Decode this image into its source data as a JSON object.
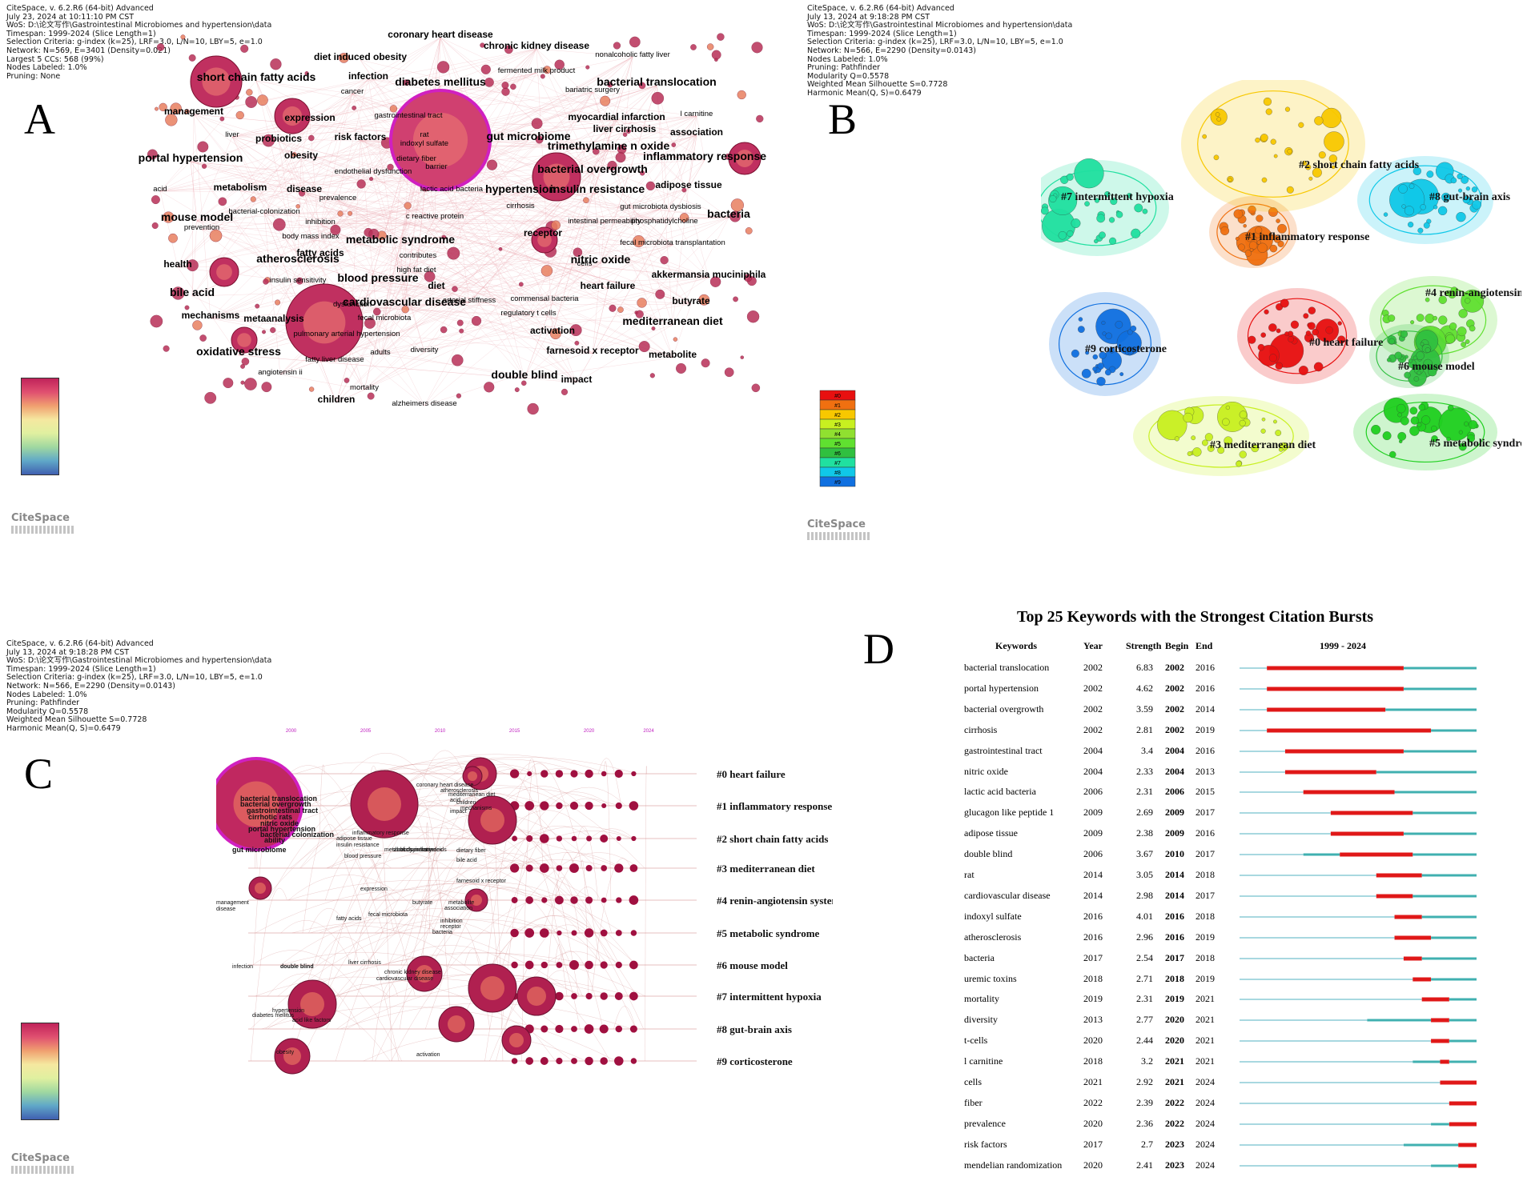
{
  "panels": {
    "A": "A",
    "B": "B",
    "C": "C",
    "D": "D"
  },
  "logo": "CiteSpace",
  "meta_A": [
    "CiteSpace, v. 6.2.R6 (64-bit) Advanced",
    "July 23, 2024 at 10:11:10 PM CST",
    "WoS: D:\\论文写作\\Gastrointestinal Microbiomes and hypertension\\data",
    "Timespan: 1999-2024 (Slice Length=1)",
    "Selection Criteria: g-index (k=25), LRF=3.0, L/N=10, LBY=5, e=1.0",
    "Network: N=569, E=3401 (Density=0.021)",
    "Largest 5 CCs: 568 (99%)",
    "Nodes Labeled: 1.0%",
    "Pruning: None"
  ],
  "meta_B": [
    "CiteSpace, v. 6.2.R6 (64-bit) Advanced",
    "July 13, 2024 at 9:18:28 PM CST",
    "WoS: D:\\论文写作\\Gastrointestinal Microbiomes and hypertension\\data",
    "Timespan: 1999-2024 (Slice Length=1)",
    "Selection Criteria: g-index (k=25), LRF=3.0, L/N=10, LBY=5, e=1.0",
    "Network: N=566, E=2290 (Density=0.0143)",
    "Nodes Labeled: 1.0%",
    "Pruning: Pathfinder",
    "Modularity Q=0.5578",
    "Weighted Mean Silhouette S=0.7728",
    "Harmonic Mean(Q, S)=0.6479"
  ],
  "meta_C": [
    "CiteSpace, v. 6.2.R6 (64-bit) Advanced",
    "July 13, 2024 at 9:18:28 PM CST",
    "WoS: D:\\论文写作\\Gastrointestinal Microbiomes and hypertension\\data",
    "Timespan: 1999-2024 (Slice Length=1)",
    "Selection Criteria: g-index (k=25), LRF=3.0, L/N=10, LBY=5, e=1.0",
    "Network: N=566, E=2290 (Density=0.0143)",
    "Nodes Labeled: 1.0%",
    "Pruning: Pathfinder",
    "Modularity Q=0.5578",
    "Weighted Mean Silhouette S=0.7728",
    "Harmonic Mean(Q, S)=0.6479"
  ],
  "network_A_labels": [
    {
      "t": "coronary heart disease",
      "b": 1
    },
    {
      "t": "chronic kidney disease",
      "b": 1
    },
    {
      "t": "nonalcoholic fatty liver",
      "b": 0
    },
    {
      "t": "diet induced obesity",
      "b": 1
    },
    {
      "t": "fermented milk product",
      "b": 0
    },
    {
      "t": "short chain fatty acids",
      "b": 2
    },
    {
      "t": "infection",
      "b": 1
    },
    {
      "t": "diabetes mellitus",
      "b": 2
    },
    {
      "t": "bacterial translocation",
      "b": 2
    },
    {
      "t": "cancer",
      "b": 0
    },
    {
      "t": "bariatric surgery",
      "b": 0
    },
    {
      "t": "management",
      "b": 1
    },
    {
      "t": "gastrointestinal tract",
      "b": 0
    },
    {
      "t": "l carnitine",
      "b": 0
    },
    {
      "t": "expression",
      "b": 1
    },
    {
      "t": "myocardial infarction",
      "b": 1
    },
    {
      "t": "liver",
      "b": 0
    },
    {
      "t": "rat",
      "b": 0
    },
    {
      "t": "gut microbiome",
      "b": 2
    },
    {
      "t": "liver cirrhosis",
      "b": 1
    },
    {
      "t": "association",
      "b": 1
    },
    {
      "t": "risk factors",
      "b": 1
    },
    {
      "t": "indoxyl sulfate",
      "b": 0
    },
    {
      "t": "probiotics",
      "b": 1
    },
    {
      "t": "trimethylamine n oxide",
      "b": 2
    },
    {
      "t": "portal hypertension",
      "b": 2
    },
    {
      "t": "obesity",
      "b": 1
    },
    {
      "t": "endothelial dysfunction",
      "b": 0
    },
    {
      "t": "dietary fiber",
      "b": 0
    },
    {
      "t": "inflammatory response",
      "b": 2
    },
    {
      "t": "barrier",
      "b": 0
    },
    {
      "t": "bacterial overgrowth",
      "b": 2
    },
    {
      "t": "acid",
      "b": 0
    },
    {
      "t": "metabolism",
      "b": 1
    },
    {
      "t": "disease",
      "b": 1
    },
    {
      "t": "lactic acid bacteria",
      "b": 0
    },
    {
      "t": "hypertension",
      "b": 2
    },
    {
      "t": "insulin resistance",
      "b": 2
    },
    {
      "t": "adipose tissue",
      "b": 1
    },
    {
      "t": "prevalence",
      "b": 0
    },
    {
      "t": "cirrhosis",
      "b": 0
    },
    {
      "t": "gut microbiota dysbiosis",
      "b": 0
    },
    {
      "t": "bacterial-colonization",
      "b": 0
    },
    {
      "t": "c reactive protein",
      "b": 0
    },
    {
      "t": "mouse model",
      "b": 2
    },
    {
      "t": "inhibition",
      "b": 0
    },
    {
      "t": "intestinal permeability",
      "b": 0
    },
    {
      "t": "phosphatidylcholine",
      "b": 0
    },
    {
      "t": "bacteria",
      "b": 2
    },
    {
      "t": "prevention",
      "b": 0
    },
    {
      "t": "receptor",
      "b": 1
    },
    {
      "t": "body mass index",
      "b": 0
    },
    {
      "t": "metabolic syndrome",
      "b": 2
    },
    {
      "t": "fecal microbiota transplantation",
      "b": 0
    },
    {
      "t": "fatty acids",
      "b": 1
    },
    {
      "t": "contributes",
      "b": 0
    },
    {
      "t": "atherosclerosis",
      "b": 2
    },
    {
      "t": "nitric oxide",
      "b": 2
    },
    {
      "t": "cells",
      "b": 0
    },
    {
      "t": "health",
      "b": 1
    },
    {
      "t": "high fat diet",
      "b": 0
    },
    {
      "t": "akkermansia muciniphila",
      "b": 1
    },
    {
      "t": "insulin sensitivity",
      "b": 0
    },
    {
      "t": "blood pressure",
      "b": 2
    },
    {
      "t": "diet",
      "b": 1
    },
    {
      "t": "heart failure",
      "b": 1
    },
    {
      "t": "bile acid",
      "b": 2
    },
    {
      "t": "dysfunction",
      "b": 0
    },
    {
      "t": "cardiovascular disease",
      "b": 2
    },
    {
      "t": "arterial stiffness",
      "b": 0
    },
    {
      "t": "commensal bacteria",
      "b": 0
    },
    {
      "t": "butyrate",
      "b": 1
    },
    {
      "t": "mechanisms",
      "b": 1
    },
    {
      "t": "metaanalysis",
      "b": 1
    },
    {
      "t": "fecal microbiota",
      "b": 0
    },
    {
      "t": "regulatory t cells",
      "b": 0
    },
    {
      "t": "mediterranean diet",
      "b": 2
    },
    {
      "t": "activation",
      "b": 1
    },
    {
      "t": "pulmonary arterial hypertension",
      "b": 0
    },
    {
      "t": "oxidative stress",
      "b": 2
    },
    {
      "t": "adults",
      "b": 0
    },
    {
      "t": "diversity",
      "b": 0
    },
    {
      "t": "farnesoid x receptor",
      "b": 1
    },
    {
      "t": "metabolite",
      "b": 1
    },
    {
      "t": "fatty liver disease",
      "b": 0
    },
    {
      "t": "angiotensin ii",
      "b": 0
    },
    {
      "t": "impact",
      "b": 1
    },
    {
      "t": "double blind",
      "b": 2
    },
    {
      "t": "mortality",
      "b": 0
    },
    {
      "t": "children",
      "b": 1
    },
    {
      "t": "alzheimers disease",
      "b": 0
    }
  ],
  "legend_B": [
    "#0",
    "#1",
    "#2",
    "#3",
    "#4",
    "#5",
    "#6",
    "#7",
    "#8",
    "#9"
  ],
  "clusters_B": [
    "#7 intermittent hypoxia",
    "#2 short chain fatty acids",
    "#8 gut-brain axis",
    "#1 inflammatory response",
    "#4 renin-angiotensin system",
    "#0 heart failure",
    "#9 corticosterone",
    "#6 mouse model",
    "#3 mediterranean diet",
    "#5 metabolic syndrome"
  ],
  "timeline_years": [
    "2000",
    "2005",
    "2010",
    "2015",
    "2020",
    "2024"
  ],
  "timeline_clusters": [
    "#0 heart failure",
    "#1 inflammatory response",
    "#2 short chain fatty acids",
    "#3 mediterranean diet",
    "#4 renin-angiotensin system",
    "#5 metabolic syndrome",
    "#6 mouse model",
    "#7 intermittent hypoxia",
    "#8 gut-brain axis",
    "#9 corticosterone"
  ],
  "timeline_labels": [
    "bacterial translocation",
    "bacterial overgrowth",
    "gastrointestinal tract",
    "cirrhotic rats",
    "nitric oxide",
    "portal hypertension",
    "bacterial colonization",
    "ability",
    "gut microbiome",
    "management",
    "disease",
    "coronary heart disease",
    "atherosclerosis",
    "mediterranean diet",
    "acid",
    "children",
    "mechanisms",
    "impact",
    "inflammatory response",
    "adipose tissue",
    "insulin resistance",
    "metabolic syndrome",
    "blood pressure",
    "short chain fatty acids",
    "body mass index",
    "dietary fiber",
    "bile acid",
    "farnesoid x receptor",
    "expression",
    "butyrate",
    "metabolite",
    "association",
    "fatty acids",
    "fecal microbiota",
    "inhibition",
    "receptor",
    "bacteria",
    "infection",
    "double blind",
    "liver cirrhosis",
    "chronic kidney disease",
    "cardiovascular disease",
    "hypertension",
    "diabetes mellitus",
    "acid like factors",
    "obesity",
    "activation"
  ],
  "burst": {
    "title": "Top 25 Keywords with the Strongest Citation Bursts",
    "headers": {
      "keywords": "Keywords",
      "year": "Year",
      "strength": "Strength",
      "begin": "Begin",
      "end": "End",
      "range": "1999 - 2024"
    },
    "rows": [
      {
        "k": "bacterial translocation",
        "y": "2002",
        "s": "6.83",
        "b": "2002",
        "e": "2016"
      },
      {
        "k": "portal hypertension",
        "y": "2002",
        "s": "4.62",
        "b": "2002",
        "e": "2016"
      },
      {
        "k": "bacterial overgrowth",
        "y": "2002",
        "s": "3.59",
        "b": "2002",
        "e": "2014"
      },
      {
        "k": "cirrhosis",
        "y": "2002",
        "s": "2.81",
        "b": "2002",
        "e": "2019"
      },
      {
        "k": "gastrointestinal tract",
        "y": "2004",
        "s": "3.4",
        "b": "2004",
        "e": "2016"
      },
      {
        "k": "nitric oxide",
        "y": "2004",
        "s": "2.33",
        "b": "2004",
        "e": "2013"
      },
      {
        "k": "lactic acid bacteria",
        "y": "2006",
        "s": "2.31",
        "b": "2006",
        "e": "2015"
      },
      {
        "k": "glucagon like peptide 1",
        "y": "2009",
        "s": "2.69",
        "b": "2009",
        "e": "2017"
      },
      {
        "k": "adipose tissue",
        "y": "2009",
        "s": "2.38",
        "b": "2009",
        "e": "2016"
      },
      {
        "k": "double blind",
        "y": "2006",
        "s": "3.67",
        "b": "2010",
        "e": "2017"
      },
      {
        "k": "rat",
        "y": "2014",
        "s": "3.05",
        "b": "2014",
        "e": "2018"
      },
      {
        "k": "cardiovascular disease",
        "y": "2014",
        "s": "2.98",
        "b": "2014",
        "e": "2017"
      },
      {
        "k": "indoxyl sulfate",
        "y": "2016",
        "s": "4.01",
        "b": "2016",
        "e": "2018"
      },
      {
        "k": "atherosclerosis",
        "y": "2016",
        "s": "2.96",
        "b": "2016",
        "e": "2019"
      },
      {
        "k": "bacteria",
        "y": "2017",
        "s": "2.54",
        "b": "2017",
        "e": "2018"
      },
      {
        "k": "uremic toxins",
        "y": "2018",
        "s": "2.71",
        "b": "2018",
        "e": "2019"
      },
      {
        "k": "mortality",
        "y": "2019",
        "s": "2.31",
        "b": "2019",
        "e": "2021"
      },
      {
        "k": "diversity",
        "y": "2013",
        "s": "2.77",
        "b": "2020",
        "e": "2021"
      },
      {
        "k": "t-cells",
        "y": "2020",
        "s": "2.44",
        "b": "2020",
        "e": "2021"
      },
      {
        "k": "l carnitine",
        "y": "2018",
        "s": "3.2",
        "b": "2021",
        "e": "2021"
      },
      {
        "k": "cells",
        "y": "2021",
        "s": "2.92",
        "b": "2021",
        "e": "2024"
      },
      {
        "k": "fiber",
        "y": "2022",
        "s": "2.39",
        "b": "2022",
        "e": "2024"
      },
      {
        "k": "prevalence",
        "y": "2020",
        "s": "2.36",
        "b": "2022",
        "e": "2024"
      },
      {
        "k": "risk factors",
        "y": "2017",
        "s": "2.7",
        "b": "2023",
        "e": "2024"
      },
      {
        "k": "mendelian randomization",
        "y": "2020",
        "s": "2.41",
        "b": "2023",
        "e": "2024"
      }
    ]
  }
}
